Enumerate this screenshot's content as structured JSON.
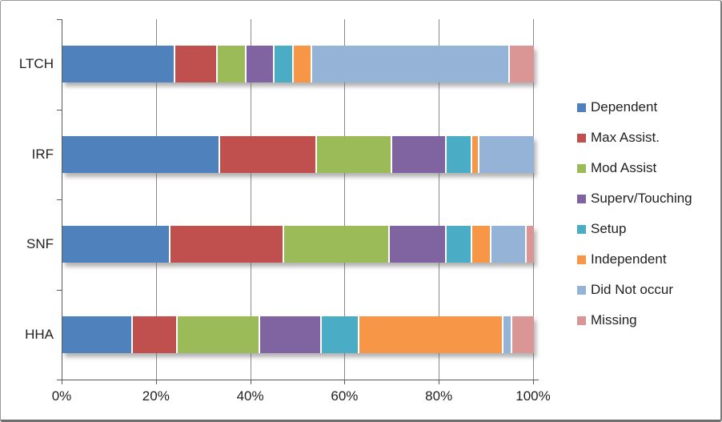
{
  "chart_data": {
    "type": "bar",
    "orientation": "horizontal",
    "stacked": true,
    "title": "",
    "xlabel": "",
    "ylabel": "",
    "xlim": [
      0,
      100
    ],
    "grid": true,
    "legend_position": "right",
    "x_ticks": [
      "0%",
      "20%",
      "40%",
      "60%",
      "80%",
      "100%"
    ],
    "x_tick_values": [
      0,
      20,
      40,
      60,
      80,
      100
    ],
    "categories": [
      "LTCH",
      "IRF",
      "SNF",
      "HHA"
    ],
    "series": [
      {
        "name": "Dependent",
        "color": "#4F81BD",
        "values": [
          24,
          33.5,
          23,
          15
        ]
      },
      {
        "name": "Max Assist.",
        "color": "#C0504D",
        "values": [
          9,
          20.5,
          24,
          9.5
        ]
      },
      {
        "name": "Mod Assist",
        "color": "#9BBB59",
        "values": [
          6,
          16,
          22.5,
          17.5
        ]
      },
      {
        "name": "Superv/Touching",
        "color": "#8064A2",
        "values": [
          6,
          11.5,
          12,
          13
        ]
      },
      {
        "name": "Setup",
        "color": "#4BACC6",
        "values": [
          4,
          5.5,
          5.5,
          8
        ]
      },
      {
        "name": "Independent",
        "color": "#F79646",
        "values": [
          4,
          1.5,
          4,
          30.5
        ]
      },
      {
        "name": "Did Not occur",
        "color": "#95B3D7",
        "values": [
          42,
          11.5,
          7.5,
          2
        ]
      },
      {
        "name": "Missing",
        "color": "#D99694",
        "values": [
          5,
          0,
          1.5,
          4.5
        ]
      }
    ]
  }
}
